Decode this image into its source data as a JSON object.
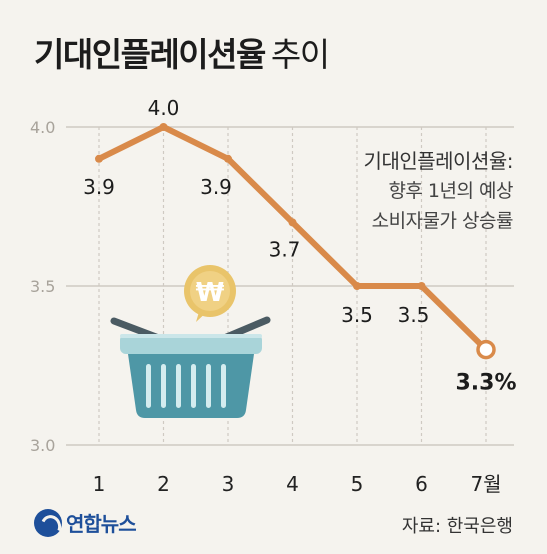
{
  "header": {
    "title_main": "기대인플레이션율",
    "title_sub": "추이"
  },
  "note": {
    "line1": "기대인플레이션율:",
    "line2": "향후 1년의 예상",
    "line3": "소비자물가 상승률"
  },
  "footer": {
    "logo_text": "연합뉴스",
    "source": "자료: 한국은행"
  },
  "illustration": {
    "coin_symbol": "₩",
    "icon": "shopping-basket-icon"
  },
  "colors": {
    "line": "#d98a4a",
    "grid": "#cfcac2",
    "basket": "#4e97a6",
    "basket_light": "#a9d4d9",
    "coin": "#e9c46a"
  },
  "chart_data": {
    "type": "line",
    "title": "기대인플레이션율 추이",
    "x": [
      "1",
      "2",
      "3",
      "4",
      "5",
      "6",
      "7월"
    ],
    "series": [
      {
        "values": [
          3.9,
          4.0,
          3.9,
          3.7,
          3.5,
          3.5,
          3.3
        ],
        "data_labels": [
          "3.9",
          "4.0",
          "3.9",
          "3.7",
          "3.5",
          "3.5",
          "3.3%"
        ]
      }
    ],
    "yticks": [
      "4.0",
      "3.5",
      "3.0"
    ],
    "ylim": [
      3.0,
      4.0
    ],
    "grid": true
  }
}
